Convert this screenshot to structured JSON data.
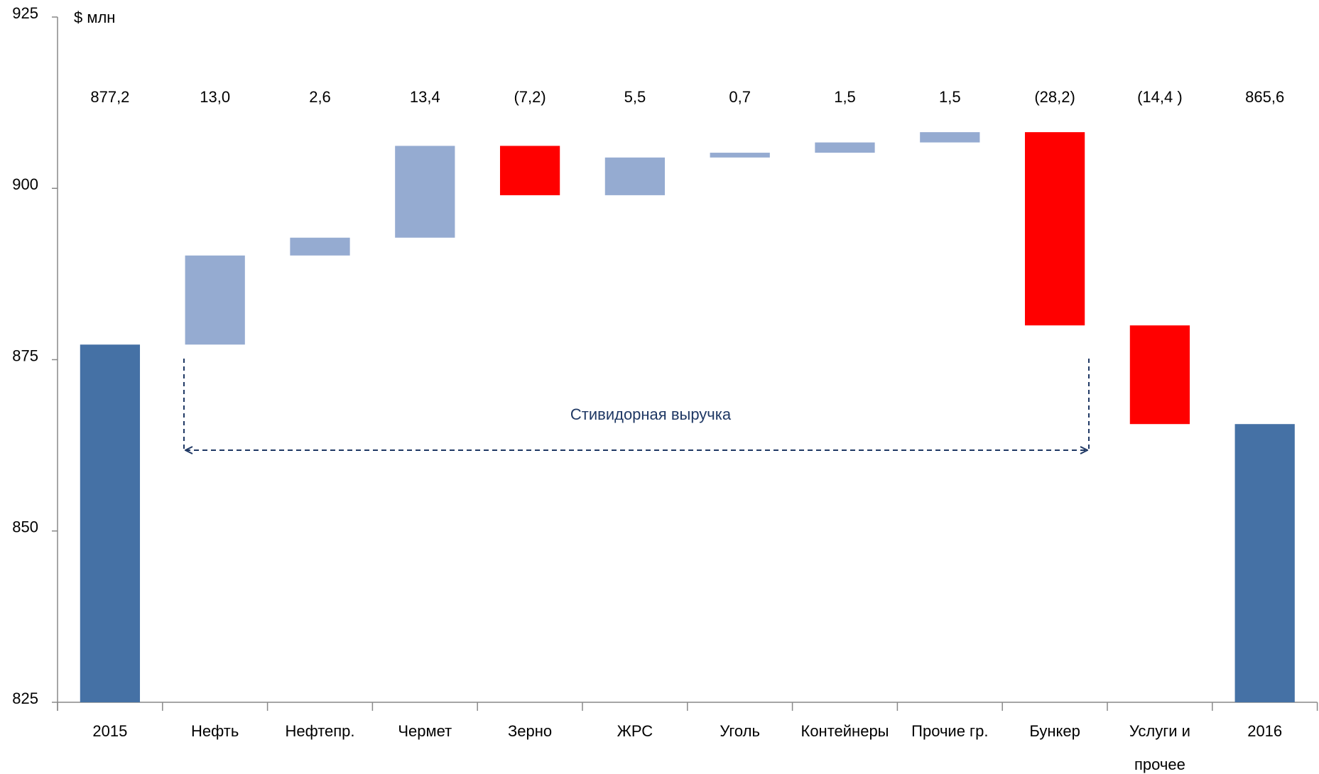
{
  "chart_data": {
    "type": "waterfall",
    "y_label": "$ млн",
    "annotation": "Стивидорная выручка",
    "categories": [
      "2015",
      "Нефть",
      "Нефтепр.",
      "Чермет",
      "Зерно",
      "ЖРС",
      "Уголь",
      "Контейнеры",
      "Прочие гр.",
      "Бункер",
      "Услуги и прочее",
      "2016"
    ],
    "measure": [
      "total",
      "delta",
      "delta",
      "delta",
      "delta",
      "delta",
      "delta",
      "delta",
      "delta",
      "delta",
      "delta",
      "total"
    ],
    "values": [
      877.2,
      13.0,
      2.6,
      13.4,
      -7.2,
      5.5,
      0.7,
      1.5,
      1.5,
      -28.2,
      -14.4,
      865.6
    ],
    "value_labels": [
      "877,2",
      "13,0",
      "2,6",
      "13,4",
      "(7,2)",
      "5,5",
      "0,7",
      "1,5",
      "1,5",
      "(28,2)",
      "(14,4 )",
      "865,6"
    ],
    "colors": {
      "total": "#4571a5",
      "increase": "#95abd1",
      "decrease": "#ff0000"
    },
    "ylim": [
      825,
      925
    ],
    "yticks": [
      825,
      850,
      875,
      900,
      925
    ]
  }
}
